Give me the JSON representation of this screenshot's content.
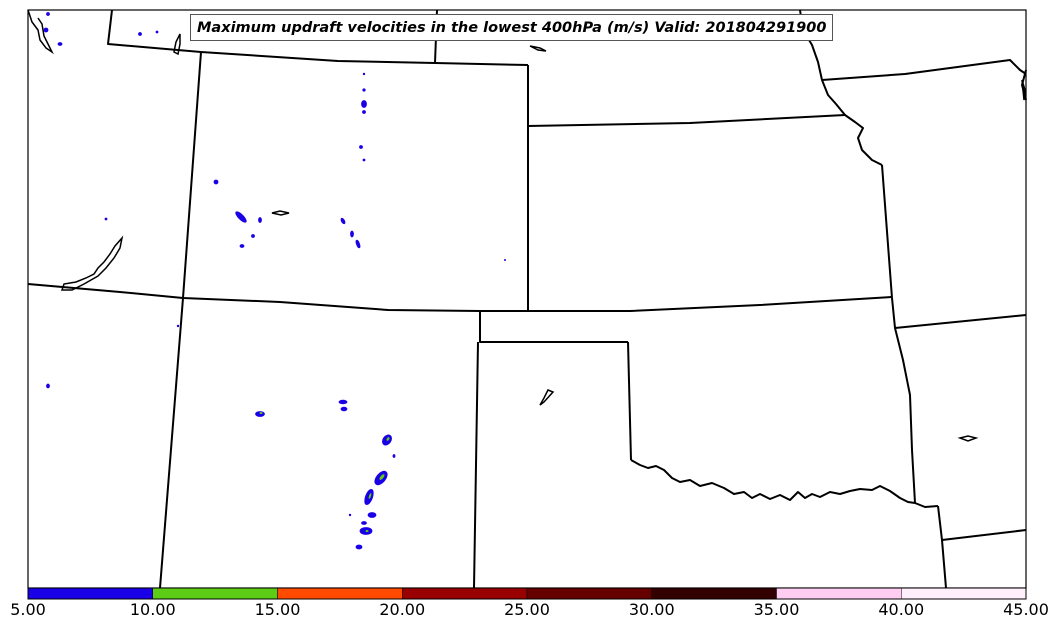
{
  "title": "Maximum updraft velocities in the lowest 400hPa (m/s) Valid: 201804291900",
  "colorbar": {
    "ticks": [
      "5.00",
      "10.00",
      "15.00",
      "20.00",
      "25.00",
      "30.00",
      "35.00",
      "40.00",
      "45.00"
    ],
    "segments": [
      {
        "min": 5,
        "max": 10,
        "color": "#1a00e6"
      },
      {
        "min": 10,
        "max": 15,
        "color": "#5ccc14"
      },
      {
        "min": 15,
        "max": 20,
        "color": "#ff4a00"
      },
      {
        "min": 20,
        "max": 25,
        "color": "#990000"
      },
      {
        "min": 25,
        "max": 30,
        "color": "#660000"
      },
      {
        "min": 30,
        "max": 35,
        "color": "#330000"
      },
      {
        "min": 35,
        "max": 40,
        "color": "#ffccf2"
      },
      {
        "min": 40,
        "max": 45,
        "color": "#ffeefc"
      }
    ]
  },
  "colors": {
    "boundary": "#000000",
    "updraft_low": "#1a00e6",
    "updraft_mid": "#5ccc14"
  }
}
